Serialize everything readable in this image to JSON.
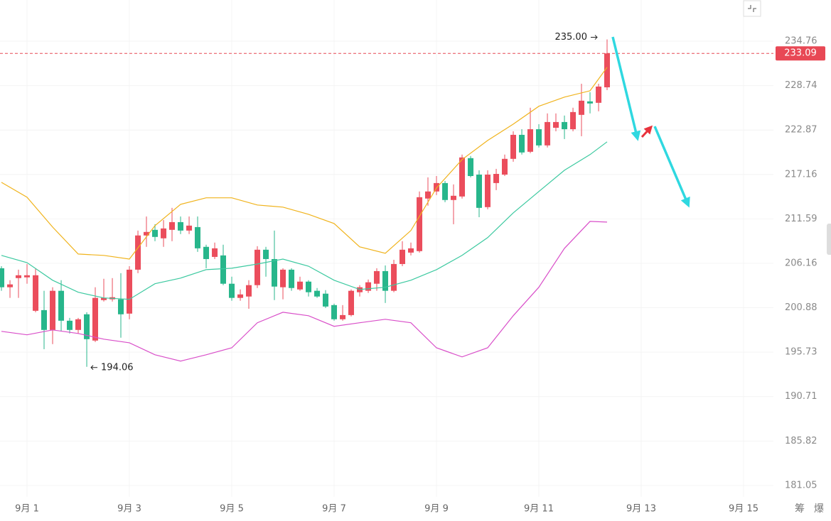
{
  "chart_data": {
    "type": "candlestick",
    "x": [
      0.5,
      0.667,
      0.833,
      1,
      1.167,
      1.333,
      1.5,
      1.667,
      1.833,
      2,
      2.167,
      2.333,
      2.5,
      2.667,
      2.833,
      3,
      3.167,
      3.333,
      3.5,
      3.667,
      3.833,
      4,
      4.167,
      4.333,
      4.5,
      4.667,
      4.833,
      5,
      5.167,
      5.333,
      5.5,
      5.667,
      5.833,
      6,
      6.167,
      6.333,
      6.5,
      6.667,
      6.833,
      7,
      7.167,
      7.333,
      7.5,
      7.667,
      7.833,
      8,
      8.167,
      8.333,
      8.5,
      8.667,
      8.833,
      9,
      9.167,
      9.333,
      9.5,
      9.667,
      9.833,
      10,
      10.167,
      10.333,
      10.5,
      10.667,
      10.833,
      11,
      11.167,
      11.333,
      11.5,
      11.667,
      11.833,
      12,
      12.167,
      12.333
    ],
    "open": [
      205.57,
      203.3,
      204.39,
      204.48,
      200.52,
      200.6,
      198.29,
      202.88,
      199.36,
      198.29,
      200.11,
      197.06,
      201.78,
      201.87,
      201.87,
      200.19,
      205.4,
      209.55,
      210.24,
      209.2,
      210.24,
      211.19,
      210.15,
      210.58,
      208.16,
      206.94,
      207.12,
      203.72,
      202.04,
      202.2,
      203.55,
      207.81,
      206.68,
      203.3,
      205.4,
      203.04,
      203.97,
      202.88,
      202.54,
      201.19,
      199.53,
      200.02,
      202.71,
      202.88,
      203.72,
      205.23,
      202.88,
      206.08,
      207.46,
      207.64,
      214.12,
      215.01,
      216.07,
      213.94,
      214.38,
      219.24,
      217.14,
      213.05,
      216.07,
      217.14,
      219.15,
      222.25,
      220.06,
      222.98,
      220.88,
      223.17,
      223.92,
      222.98,
      224.86,
      226.64,
      226.45,
      228.51
    ],
    "high": [
      205.82,
      204.14,
      205.4,
      206.08,
      205.57,
      202.88,
      203.3,
      204.14,
      199.69,
      199.69,
      200.35,
      203.3,
      204.31,
      204.39,
      204.98,
      205.82,
      210.15,
      211.89,
      210.93,
      211.45,
      212.96,
      211.89,
      211.89,
      211.89,
      208.42,
      208.68,
      208.42,
      204.56,
      203.04,
      204.14,
      208.24,
      208.16,
      210.15,
      205.57,
      205.57,
      204.56,
      204.14,
      203.21,
      202.96,
      201.36,
      201.19,
      203.04,
      203.55,
      204.22,
      205.57,
      205.91,
      206.59,
      208.85,
      208.68,
      215.01,
      216.79,
      216.96,
      216.34,
      215.9,
      219.7,
      219.52,
      217.69,
      217.69,
      217.87,
      219.7,
      222.71,
      222.98,
      225.8,
      223.64,
      225.05,
      225.05,
      224.77,
      225.8,
      228.99,
      227.86,
      228.99,
      235
    ],
    "low": [
      202.88,
      202.04,
      202.04,
      203.72,
      200.35,
      196.07,
      196.65,
      198.13,
      197.88,
      197.88,
      194.06,
      196.89,
      201.61,
      201.61,
      197.39,
      199.53,
      204.98,
      208.16,
      208.85,
      208.16,
      208.85,
      209.72,
      209.72,
      207.55,
      205.57,
      206.68,
      203.55,
      201.7,
      201.7,
      200.76,
      203.21,
      204.56,
      201.78,
      201.87,
      202.88,
      202.88,
      202.2,
      202.04,
      200.85,
      199.36,
      199.36,
      199.86,
      202.2,
      202.62,
      202.88,
      201.44,
      202.71,
      205.82,
      207.12,
      207.46,
      213.23,
      214.56,
      213.67,
      210.93,
      214.12,
      216.79,
      211.8,
      212.78,
      215.18,
      216.96,
      218.78,
      219.7,
      219.88,
      220.61,
      220.61,
      222.71,
      221.7,
      222.71,
      222.07,
      225.05,
      225.33,
      228.14
    ],
    "close": [
      203.3,
      203.64,
      204.73,
      204.73,
      204.73,
      198.29,
      202.88,
      199.36,
      198.29,
      199.53,
      197.22,
      202.04,
      202.04,
      202.12,
      200.11,
      205.4,
      209.55,
      209.98,
      209.37,
      210.41,
      211.19,
      210.15,
      210.76,
      207.98,
      206.68,
      207.98,
      203.72,
      202.04,
      202.45,
      203.55,
      207.81,
      206.68,
      203.38,
      205.4,
      203.21,
      203.97,
      202.71,
      202.2,
      201.02,
      199.53,
      200.02,
      202.88,
      203.3,
      203.89,
      205.23,
      202.88,
      206.08,
      207.81,
      207.98,
      214.29,
      215.01,
      216.07,
      213.94,
      214.47,
      219.33,
      216.96,
      212.96,
      217.14,
      217.23,
      219.15,
      222.25,
      219.97,
      222.98,
      220.88,
      223.92,
      223.92,
      222.98,
      225.23,
      226.73,
      226.36,
      228.61,
      233.09
    ],
    "up_color": "#eb4d5c",
    "down_color": "#27b68b",
    "bands": [
      {
        "color": "#f0b31c",
        "x": [
          0.5,
          1,
          1.5,
          2,
          2.5,
          3,
          3.5,
          4,
          4.5,
          5,
          5.5,
          6,
          6.5,
          7,
          7.5,
          8,
          8.5,
          9,
          9.5,
          10,
          10.5,
          11,
          11.5,
          12,
          12.333
        ],
        "values": [
          216.16,
          214.29,
          210.58,
          207.29,
          207.12,
          206.68,
          210.76,
          213.4,
          214.21,
          214.21,
          213.32,
          213.05,
          212.16,
          211.02,
          208.16,
          207.38,
          210.15,
          215.45,
          219.06,
          221.52,
          223.64,
          225.99,
          227.21,
          228.05,
          231.2
        ]
      },
      {
        "color": "#3cc9a0",
        "x": [
          0.5,
          1,
          1.5,
          2,
          2.5,
          3,
          3.5,
          4,
          4.5,
          5,
          5.5,
          6,
          6.5,
          7,
          7.5,
          8,
          8.5,
          9,
          9.5,
          10,
          10.5,
          11,
          11.5,
          12,
          12.333
        ],
        "values": [
          207.12,
          206.25,
          204.14,
          202.71,
          202.04,
          201.87,
          203.72,
          204.39,
          205.4,
          205.57,
          206.08,
          206.68,
          205.82,
          204.14,
          203.04,
          203.3,
          204.14,
          205.4,
          207.12,
          209.28,
          212.34,
          215.01,
          217.69,
          219.7,
          221.34
        ]
      },
      {
        "color": "#d94fc9",
        "x": [
          0.5,
          1,
          1.5,
          2,
          2.5,
          3,
          3.5,
          4,
          4.5,
          5,
          5.5,
          6,
          6.5,
          7,
          7.5,
          8,
          8.5,
          9,
          9.5,
          10,
          10.5,
          11,
          11.5,
          12,
          12.333
        ],
        "values": [
          198.13,
          197.72,
          198.29,
          197.88,
          197.22,
          196.81,
          195.43,
          194.71,
          195.43,
          196.23,
          199.12,
          200.35,
          199.94,
          198.71,
          199.12,
          199.53,
          199.12,
          196.23,
          195.19,
          196.23,
          199.94,
          203.3,
          207.98,
          211.28,
          211.19
        ]
      }
    ],
    "log_scale": true,
    "ylim": [
      179.85,
      240.48
    ],
    "yticks": [
      234.76,
      228.74,
      222.87,
      217.16,
      211.59,
      206.16,
      200.88,
      195.73,
      190.71,
      185.82,
      181.05
    ],
    "xlim": [
      0.472,
      15.583
    ],
    "xticks": [
      {
        "value": 1,
        "label": "9月 1"
      },
      {
        "value": 3,
        "label": "9月 3"
      },
      {
        "value": 5,
        "label": "9月 5"
      },
      {
        "value": 7,
        "label": "9月 7"
      },
      {
        "value": 9,
        "label": "9月 9"
      },
      {
        "value": 11,
        "label": "9月 11"
      },
      {
        "value": 13,
        "label": "9月 13"
      },
      {
        "value": 15,
        "label": "9月 15"
      }
    ],
    "grid": true,
    "high_label": "235.00",
    "low_label": "194.06",
    "price_line_color": "#e84855"
  },
  "toolbar": [
    "筹",
    "爆"
  ]
}
